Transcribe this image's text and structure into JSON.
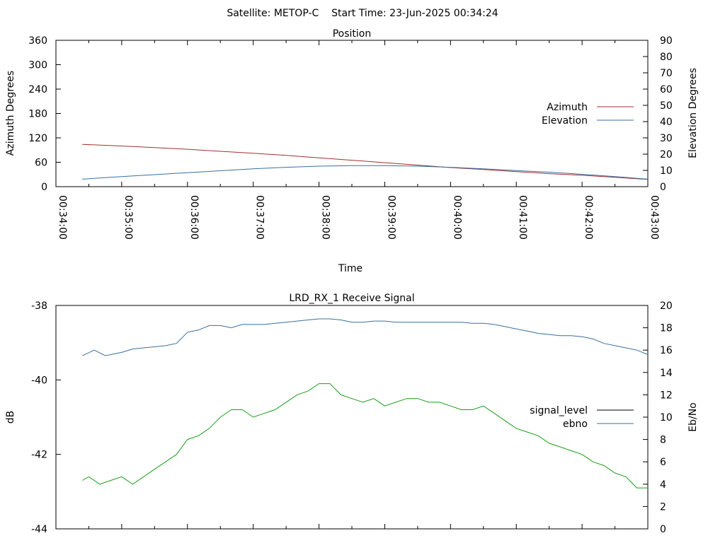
{
  "header": {
    "title": "Satellite: METOP-C    Start Time: 23-Jun-2025 00:34:24"
  },
  "chart_data": [
    {
      "type": "line",
      "title": "Position",
      "xlabel": "Time",
      "ylabel": "Azimuth Degrees",
      "y2label": "Elevation Degrees",
      "x_ticks": [
        "00:34:00",
        "00:35:00",
        "00:36:00",
        "00:37:00",
        "00:38:00",
        "00:39:00",
        "00:40:00",
        "00:41:00",
        "00:42:00",
        "00:43:00"
      ],
      "x_range": [
        "00:34:00",
        "00:43:00"
      ],
      "ylim": [
        0,
        360
      ],
      "y2lim": [
        0,
        90
      ],
      "y_ticks": [
        "0",
        "60",
        "120",
        "180",
        "240",
        "300",
        "360"
      ],
      "y2_ticks": [
        "0",
        "10",
        "20",
        "30",
        "40",
        "50",
        "60",
        "70",
        "80",
        "90"
      ],
      "legend_position": "right",
      "grid": false,
      "series": [
        {
          "name": "Azimuth",
          "axis": "left",
          "color": "#a0302f",
          "points": [
            [
              "00:34:24",
              104
            ],
            [
              "00:35:00",
              100
            ],
            [
              "00:35:30",
              96
            ],
            [
              "00:36:00",
              92
            ],
            [
              "00:36:30",
              87
            ],
            [
              "00:37:00",
              82
            ],
            [
              "00:37:30",
              77
            ],
            [
              "00:38:00",
              71
            ],
            [
              "00:38:30",
              65
            ],
            [
              "00:39:00",
              59
            ],
            [
              "00:39:30",
              53
            ],
            [
              "00:40:00",
              47
            ],
            [
              "00:40:30",
              42
            ],
            [
              "00:41:00",
              37
            ],
            [
              "00:41:30",
              32
            ],
            [
              "00:42:00",
              28
            ],
            [
              "00:42:30",
              23
            ],
            [
              "00:43:00",
              18
            ]
          ]
        },
        {
          "name": "Elevation",
          "axis": "right",
          "color": "#3a6fa0",
          "points": [
            [
              "00:34:24",
              4.6
            ],
            [
              "00:35:00",
              6.2
            ],
            [
              "00:35:30",
              7.4
            ],
            [
              "00:36:00",
              8.6
            ],
            [
              "00:36:30",
              9.8
            ],
            [
              "00:37:00",
              11.0
            ],
            [
              "00:37:30",
              11.9
            ],
            [
              "00:38:00",
              12.6
            ],
            [
              "00:38:30",
              12.9
            ],
            [
              "00:39:00",
              12.9
            ],
            [
              "00:39:30",
              12.6
            ],
            [
              "00:40:00",
              11.9
            ],
            [
              "00:40:30",
              11.0
            ],
            [
              "00:41:00",
              9.9
            ],
            [
              "00:41:30",
              8.9
            ],
            [
              "00:42:00",
              7.6
            ],
            [
              "00:42:30",
              6.2
            ],
            [
              "00:43:00",
              4.6
            ]
          ]
        }
      ]
    },
    {
      "type": "line",
      "title": "LRD_RX_1 Receive Signal",
      "xlabel": "",
      "ylabel": "dB",
      "y2label": "Eb/No",
      "x_range": [
        "00:34:00",
        "00:43:00"
      ],
      "ylim": [
        -44,
        -38
      ],
      "y2lim": [
        0,
        20
      ],
      "y_ticks": [
        "-44",
        "-42",
        "-40",
        "-38"
      ],
      "y2_ticks": [
        "0",
        "2",
        "4",
        "6",
        "8",
        "10",
        "12",
        "14",
        "16",
        "18",
        "20"
      ],
      "legend_position": "right",
      "grid": false,
      "series": [
        {
          "name": "signal_level",
          "axis": "left",
          "color": "#000000",
          "points": []
        },
        {
          "name": "ebno",
          "axis": "right",
          "color": "#3a6fa0",
          "points": [
            [
              "00:34:24",
              15.5
            ],
            [
              "00:34:35",
              16.0
            ],
            [
              "00:34:45",
              15.5
            ],
            [
              "00:35:00",
              15.8
            ],
            [
              "00:35:10",
              16.1
            ],
            [
              "00:35:20",
              16.2
            ],
            [
              "00:35:30",
              16.3
            ],
            [
              "00:35:40",
              16.4
            ],
            [
              "00:35:50",
              16.6
            ],
            [
              "00:36:00",
              17.6
            ],
            [
              "00:36:10",
              17.8
            ],
            [
              "00:36:20",
              18.2
            ],
            [
              "00:36:30",
              18.2
            ],
            [
              "00:36:40",
              18.0
            ],
            [
              "00:36:50",
              18.3
            ],
            [
              "00:37:00",
              18.3
            ],
            [
              "00:37:10",
              18.3
            ],
            [
              "00:37:20",
              18.4
            ],
            [
              "00:37:30",
              18.5
            ],
            [
              "00:37:40",
              18.6
            ],
            [
              "00:37:50",
              18.7
            ],
            [
              "00:38:00",
              18.8
            ],
            [
              "00:38:10",
              18.8
            ],
            [
              "00:38:20",
              18.7
            ],
            [
              "00:38:30",
              18.5
            ],
            [
              "00:38:40",
              18.5
            ],
            [
              "00:38:50",
              18.6
            ],
            [
              "00:39:00",
              18.6
            ],
            [
              "00:39:10",
              18.5
            ],
            [
              "00:39:20",
              18.5
            ],
            [
              "00:39:30",
              18.5
            ],
            [
              "00:39:40",
              18.5
            ],
            [
              "00:39:50",
              18.5
            ],
            [
              "00:40:00",
              18.5
            ],
            [
              "00:40:10",
              18.5
            ],
            [
              "00:40:20",
              18.4
            ],
            [
              "00:40:30",
              18.4
            ],
            [
              "00:40:40",
              18.3
            ],
            [
              "00:40:50",
              18.1
            ],
            [
              "00:41:00",
              17.9
            ],
            [
              "00:41:10",
              17.7
            ],
            [
              "00:41:20",
              17.5
            ],
            [
              "00:41:30",
              17.4
            ],
            [
              "00:41:40",
              17.3
            ],
            [
              "00:41:50",
              17.3
            ],
            [
              "00:42:00",
              17.2
            ],
            [
              "00:42:10",
              17.0
            ],
            [
              "00:42:20",
              16.6
            ],
            [
              "00:42:30",
              16.4
            ],
            [
              "00:42:40",
              16.2
            ],
            [
              "00:42:50",
              16.0
            ],
            [
              "00:43:00",
              15.6
            ]
          ]
        },
        {
          "color": "#1a9e1a",
          "axis": "left",
          "points": [
            [
              "00:34:24",
              -42.7
            ],
            [
              "00:34:30",
              -42.6
            ],
            [
              "00:34:40",
              -42.8
            ],
            [
              "00:34:50",
              -42.7
            ],
            [
              "00:35:00",
              -42.6
            ],
            [
              "00:35:10",
              -42.8
            ],
            [
              "00:35:20",
              -42.6
            ],
            [
              "00:35:30",
              -42.4
            ],
            [
              "00:35:40",
              -42.2
            ],
            [
              "00:35:50",
              -42.0
            ],
            [
              "00:36:00",
              -41.6
            ],
            [
              "00:36:10",
              -41.5
            ],
            [
              "00:36:20",
              -41.3
            ],
            [
              "00:36:30",
              -41.0
            ],
            [
              "00:36:40",
              -40.8
            ],
            [
              "00:36:50",
              -40.8
            ],
            [
              "00:37:00",
              -41.0
            ],
            [
              "00:37:10",
              -40.9
            ],
            [
              "00:37:20",
              -40.8
            ],
            [
              "00:37:30",
              -40.6
            ],
            [
              "00:37:40",
              -40.4
            ],
            [
              "00:37:50",
              -40.3
            ],
            [
              "00:38:00",
              -40.1
            ],
            [
              "00:38:10",
              -40.1
            ],
            [
              "00:38:20",
              -40.4
            ],
            [
              "00:38:30",
              -40.5
            ],
            [
              "00:38:40",
              -40.6
            ],
            [
              "00:38:50",
              -40.5
            ],
            [
              "00:39:00",
              -40.7
            ],
            [
              "00:39:10",
              -40.6
            ],
            [
              "00:39:20",
              -40.5
            ],
            [
              "00:39:30",
              -40.5
            ],
            [
              "00:39:40",
              -40.6
            ],
            [
              "00:39:50",
              -40.6
            ],
            [
              "00:40:00",
              -40.7
            ],
            [
              "00:40:10",
              -40.8
            ],
            [
              "00:40:20",
              -40.8
            ],
            [
              "00:40:30",
              -40.7
            ],
            [
              "00:40:40",
              -40.9
            ],
            [
              "00:40:50",
              -41.1
            ],
            [
              "00:41:00",
              -41.3
            ],
            [
              "00:41:10",
              -41.4
            ],
            [
              "00:41:20",
              -41.5
            ],
            [
              "00:41:30",
              -41.7
            ],
            [
              "00:41:40",
              -41.8
            ],
            [
              "00:41:50",
              -41.9
            ],
            [
              "00:42:00",
              -42.0
            ],
            [
              "00:42:10",
              -42.2
            ],
            [
              "00:42:20",
              -42.3
            ],
            [
              "00:42:30",
              -42.5
            ],
            [
              "00:42:40",
              -42.6
            ],
            [
              "00:42:50",
              -42.9
            ],
            [
              "00:43:00",
              -42.9
            ]
          ]
        }
      ]
    }
  ]
}
